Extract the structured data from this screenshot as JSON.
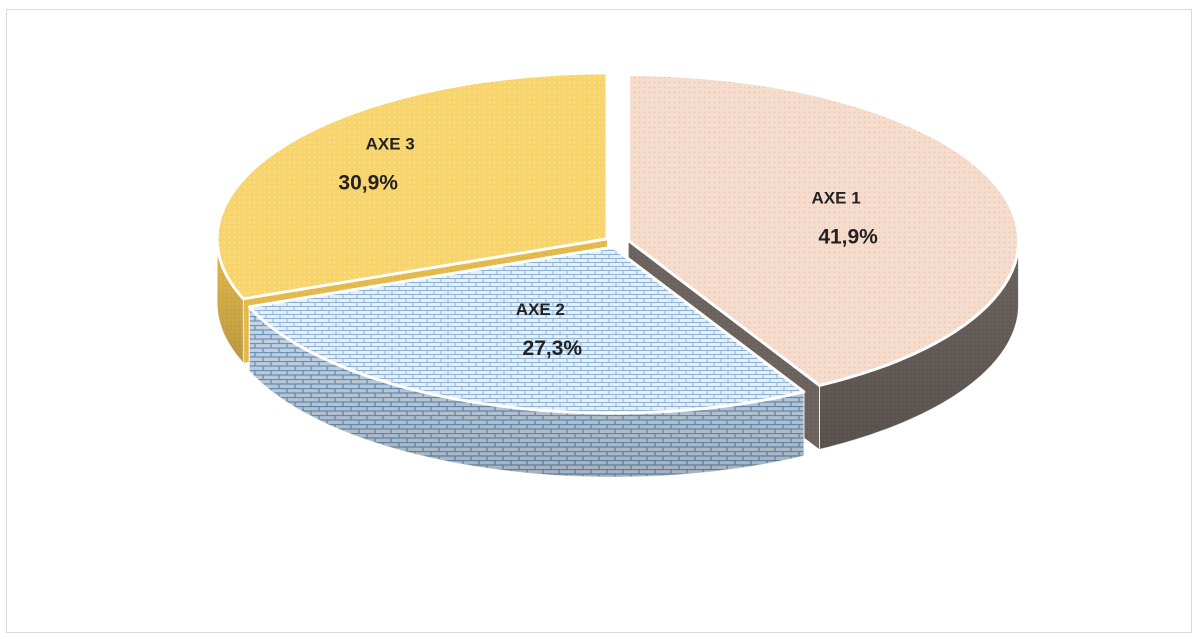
{
  "chart_data": {
    "type": "pie",
    "style": "3d-exploded",
    "title": "",
    "categories": [
      "AXE 1",
      "AXE 2",
      "AXE 3"
    ],
    "values": [
      41.9,
      27.3,
      30.9
    ],
    "value_labels": [
      "41,9%",
      "27,3%",
      "30,9%"
    ],
    "legend": "none",
    "colors": {
      "AXE 1": {
        "top": "#f6dccd",
        "side": "#6b625d",
        "pattern": "dots"
      },
      "AXE 2": {
        "top": "#e3eef7",
        "side": "#7fa3c6",
        "pattern": "bricks"
      },
      "AXE 3": {
        "top": "#f7d46c",
        "side": "#e2b84a",
        "pattern": "dots"
      }
    }
  }
}
